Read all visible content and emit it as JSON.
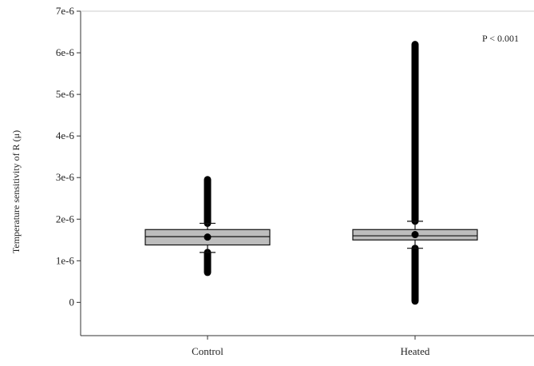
{
  "chart_data": {
    "type": "boxplot",
    "ylabel": "Temperature sensitivity of R (μ)",
    "ylim": [
      -8e-07,
      7e-06
    ],
    "yticks": [
      0,
      1e-06,
      2e-06,
      3e-06,
      4e-06,
      5e-06,
      6e-06,
      7e-06
    ],
    "ytick_labels": [
      "0",
      "1e-6",
      "2e-6",
      "3e-6",
      "4e-6",
      "5e-6",
      "6e-6",
      "7e-6"
    ],
    "categories": [
      "Control",
      "Heated"
    ],
    "annotation": "P < 0.001",
    "grid": false,
    "series": [
      {
        "category": "Control",
        "q1": 1.38e-06,
        "median": 1.58e-06,
        "q3": 1.75e-06,
        "mean": 1.57e-06,
        "whisker_low": 1.2e-06,
        "whisker_high": 1.9e-06,
        "outliers_low": [
          7.2e-07,
          1.2e-06
        ],
        "outliers_high": [
          1.9e-06,
          2.95e-06
        ]
      },
      {
        "category": "Heated",
        "q1": 1.5e-06,
        "median": 1.6e-06,
        "q3": 1.75e-06,
        "mean": 1.63e-06,
        "whisker_low": 1.3e-06,
        "whisker_high": 1.95e-06,
        "outliers_low": [
          3e-08,
          1.3e-06
        ],
        "outliers_high": [
          1.95e-06,
          6.2e-06
        ]
      }
    ],
    "colors": {
      "box": "#bdbdbd",
      "points": "#000000",
      "axis": "#333333"
    }
  }
}
